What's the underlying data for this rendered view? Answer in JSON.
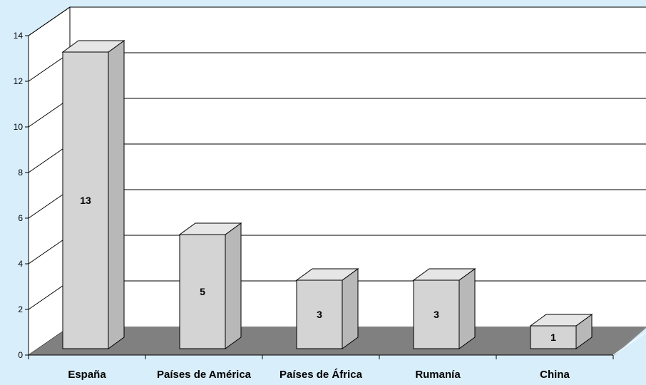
{
  "chart_data": {
    "type": "bar",
    "categories": [
      "España",
      "Países de América",
      "Países de África",
      "Rumanía",
      "China"
    ],
    "values": [
      13,
      5,
      3,
      3,
      1
    ],
    "data_labels": [
      "13",
      "5",
      "3",
      "3",
      "1"
    ],
    "ylim": [
      0,
      14
    ],
    "yticks": [
      "0",
      "2",
      "4",
      "6",
      "8",
      "10",
      "12",
      "14"
    ],
    "grid": true,
    "legend": "none",
    "style": "3d-column",
    "colors": {
      "background": "#d9eefb",
      "plot_wall": "#ffffff",
      "floor": "#808080",
      "bar_front": "#d4d4d4",
      "bar_top": "#e6e6e6",
      "bar_side": "#b8b8b8"
    }
  }
}
